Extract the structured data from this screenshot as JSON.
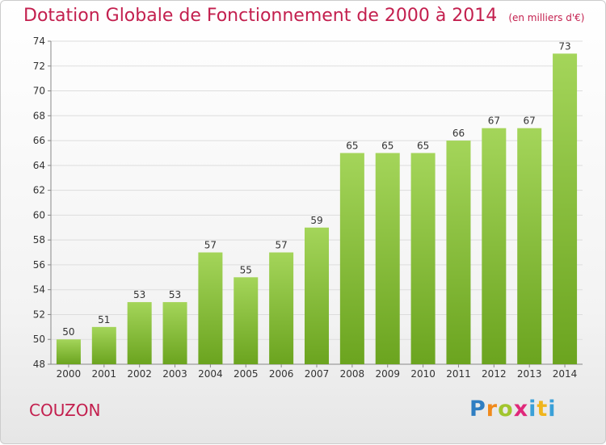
{
  "header": {
    "title": "Dotation Globale de Fonctionnement de 2000 à 2014",
    "unit": "(en milliers d'€)"
  },
  "footer": {
    "commune": "COUZON",
    "logo_text": "Proxiti"
  },
  "colors": {
    "title": "#c31f4e",
    "bar_top": "#a4d55a",
    "bar_bottom": "#6ba41f",
    "grid": "#dddddd"
  },
  "chart_data": {
    "type": "bar",
    "title": "Dotation Globale de Fonctionnement de 2000 à 2014",
    "xlabel": "",
    "ylabel": "",
    "categories": [
      "2000",
      "2001",
      "2002",
      "2003",
      "2004",
      "2005",
      "2006",
      "2007",
      "2008",
      "2009",
      "2010",
      "2011",
      "2012",
      "2013",
      "2014"
    ],
    "values": [
      50,
      51,
      53,
      53,
      57,
      55,
      57,
      59,
      65,
      65,
      65,
      66,
      67,
      67,
      73
    ],
    "ylim": [
      48,
      74
    ],
    "yticks": [
      48,
      50,
      52,
      54,
      56,
      58,
      60,
      62,
      64,
      66,
      68,
      70,
      72,
      74
    ],
    "grid": true,
    "data_labels": true
  }
}
